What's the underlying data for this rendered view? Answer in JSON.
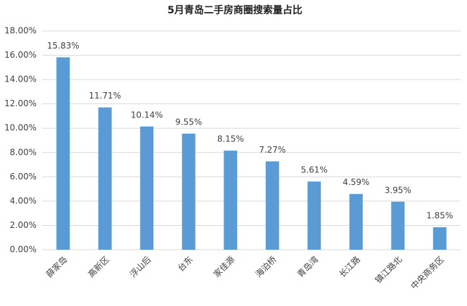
{
  "chart_data": {
    "type": "bar",
    "title": "5月青岛二手房商圈搜索量占比",
    "categories": [
      "薛家岛",
      "高新区",
      "浮山后",
      "台东",
      "家佳源",
      "海泊桥",
      "青岛湾",
      "长江路",
      "镇江路北",
      "中央商务区"
    ],
    "values": [
      15.83,
      11.71,
      10.14,
      9.55,
      8.15,
      7.27,
      5.61,
      4.59,
      3.95,
      1.85
    ],
    "value_labels": [
      "15.83%",
      "11.71%",
      "10.14%",
      "9.55%",
      "8.15%",
      "7.27%",
      "5.61%",
      "4.59%",
      "3.95%",
      "1.85%"
    ],
    "color": "#5b9bd5",
    "ylim": [
      0,
      18
    ],
    "yticks": [
      {
        "value": 0,
        "label": "0.00%"
      },
      {
        "value": 2,
        "label": "2.00%"
      },
      {
        "value": 4,
        "label": "4.00%"
      },
      {
        "value": 6,
        "label": "6.00%"
      },
      {
        "value": 8,
        "label": "8.00%"
      },
      {
        "value": 10,
        "label": "10.00%"
      },
      {
        "value": 12,
        "label": "12.00%"
      },
      {
        "value": 14,
        "label": "14.00%"
      },
      {
        "value": 16,
        "label": "16.00%"
      },
      {
        "value": 18,
        "label": "18.00%"
      }
    ],
    "grid": true
  }
}
